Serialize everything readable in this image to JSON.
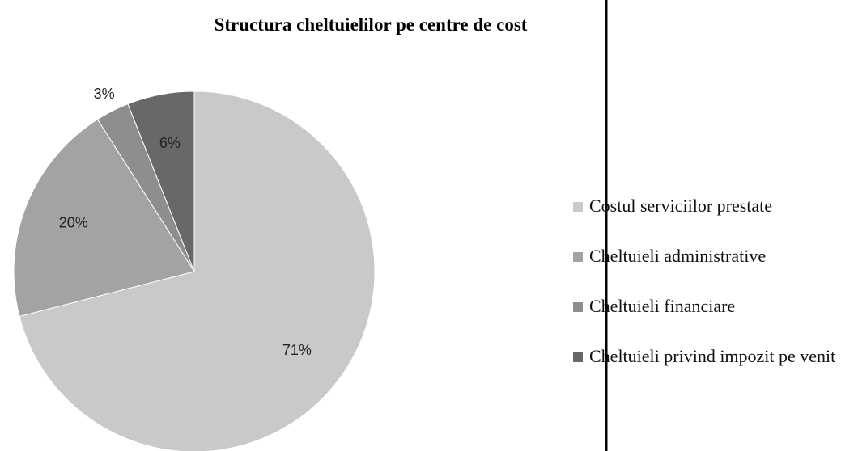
{
  "chart_data": {
    "type": "pie",
    "title": "Structura cheltuielilor pe centre de cost",
    "categories": [
      "Costul serviciilor prestate",
      "Cheltuieli administrative",
      "Cheltuieli financiare",
      "Cheltuieli privind impozit pe venit"
    ],
    "values": [
      71,
      20,
      3,
      6
    ],
    "value_labels": [
      "71%",
      "20%",
      "3%",
      "6%"
    ],
    "colors": [
      "#c9c9c9",
      "#a3a3a3",
      "#8e8e8e",
      "#686868"
    ],
    "legend": "right"
  }
}
